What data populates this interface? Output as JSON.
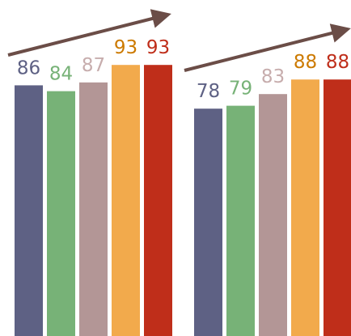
{
  "chart_data": [
    {
      "type": "bar",
      "values": [
        86,
        84,
        87,
        93,
        93
      ],
      "labels": [
        "86",
        "84",
        "87",
        "93",
        "93"
      ],
      "colors": [
        "#5e6184",
        "#77b277",
        "#b39696",
        "#f2aa4c",
        "#bf2e1a"
      ],
      "label_colors": [
        "#5e6184",
        "#77b277",
        "#c7adad",
        "#cc7a00",
        "#bf2e1a"
      ],
      "trend_arrow": "up",
      "arrow_color": "#6b4d47",
      "grid": false,
      "legend": "none"
    },
    {
      "type": "bar",
      "values": [
        78,
        79,
        83,
        88,
        88
      ],
      "labels": [
        "78",
        "79",
        "83",
        "88",
        "88"
      ],
      "colors": [
        "#5e6184",
        "#77b277",
        "#b39696",
        "#f2aa4c",
        "#bf2e1a"
      ],
      "label_colors": [
        "#5e6184",
        "#77b277",
        "#c7adad",
        "#cc7a00",
        "#bf2e1a"
      ],
      "trend_arrow": "up",
      "arrow_color": "#6b4d47",
      "grid": false,
      "legend": "none"
    }
  ]
}
